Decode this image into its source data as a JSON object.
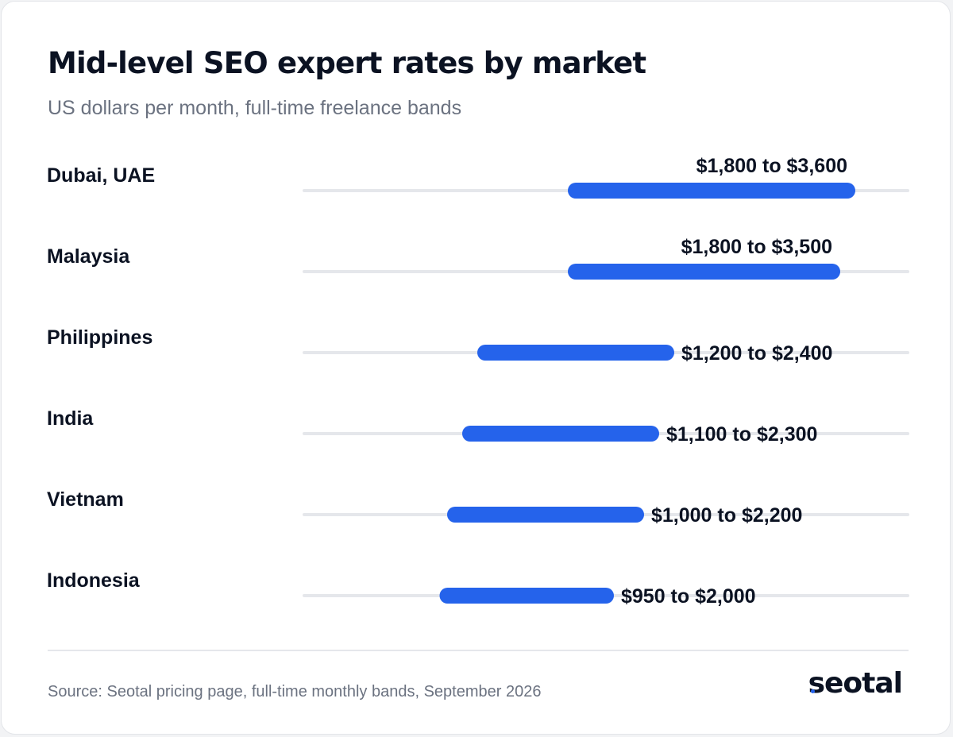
{
  "header": {
    "title": "Mid-level SEO expert rates by market",
    "subtitle": "US dollars per month, full-time freelance bands"
  },
  "chart_data": {
    "type": "range-bar",
    "title": "Mid-level SEO expert rates by market",
    "subtitle": "US dollars per month, full-time freelance bands",
    "xlim": [
      0,
      4000
    ],
    "grid": false,
    "bar_color": "#2563eb",
    "track_color": "#e5e7eb",
    "rows": [
      {
        "label": "Dubai, UAE",
        "min": 1800,
        "max": 3600,
        "range_label": "$1,800 to $3,600",
        "label_pos": "above"
      },
      {
        "label": "Malaysia",
        "min": 1800,
        "max": 3500,
        "range_label": "$1,800 to $3,500",
        "label_pos": "above"
      },
      {
        "label": "Philippines",
        "min": 1200,
        "max": 2400,
        "range_label": "$1,200 to $2,400",
        "label_pos": "right"
      },
      {
        "label": "India",
        "min": 1100,
        "max": 2300,
        "range_label": "$1,100 to $2,300",
        "label_pos": "right"
      },
      {
        "label": "Vietnam",
        "min": 1000,
        "max": 2200,
        "range_label": "$1,000 to $2,200",
        "label_pos": "right"
      },
      {
        "label": "Indonesia",
        "min": 950,
        "max": 2000,
        "range_label": "$950 to $2,000",
        "label_pos": "right"
      }
    ]
  },
  "footer": {
    "source": "Source: Seotal pricing page, full-time monthly bands, September 2026",
    "logo_text": "seotal",
    "logo_dot_color": "#2563eb"
  }
}
